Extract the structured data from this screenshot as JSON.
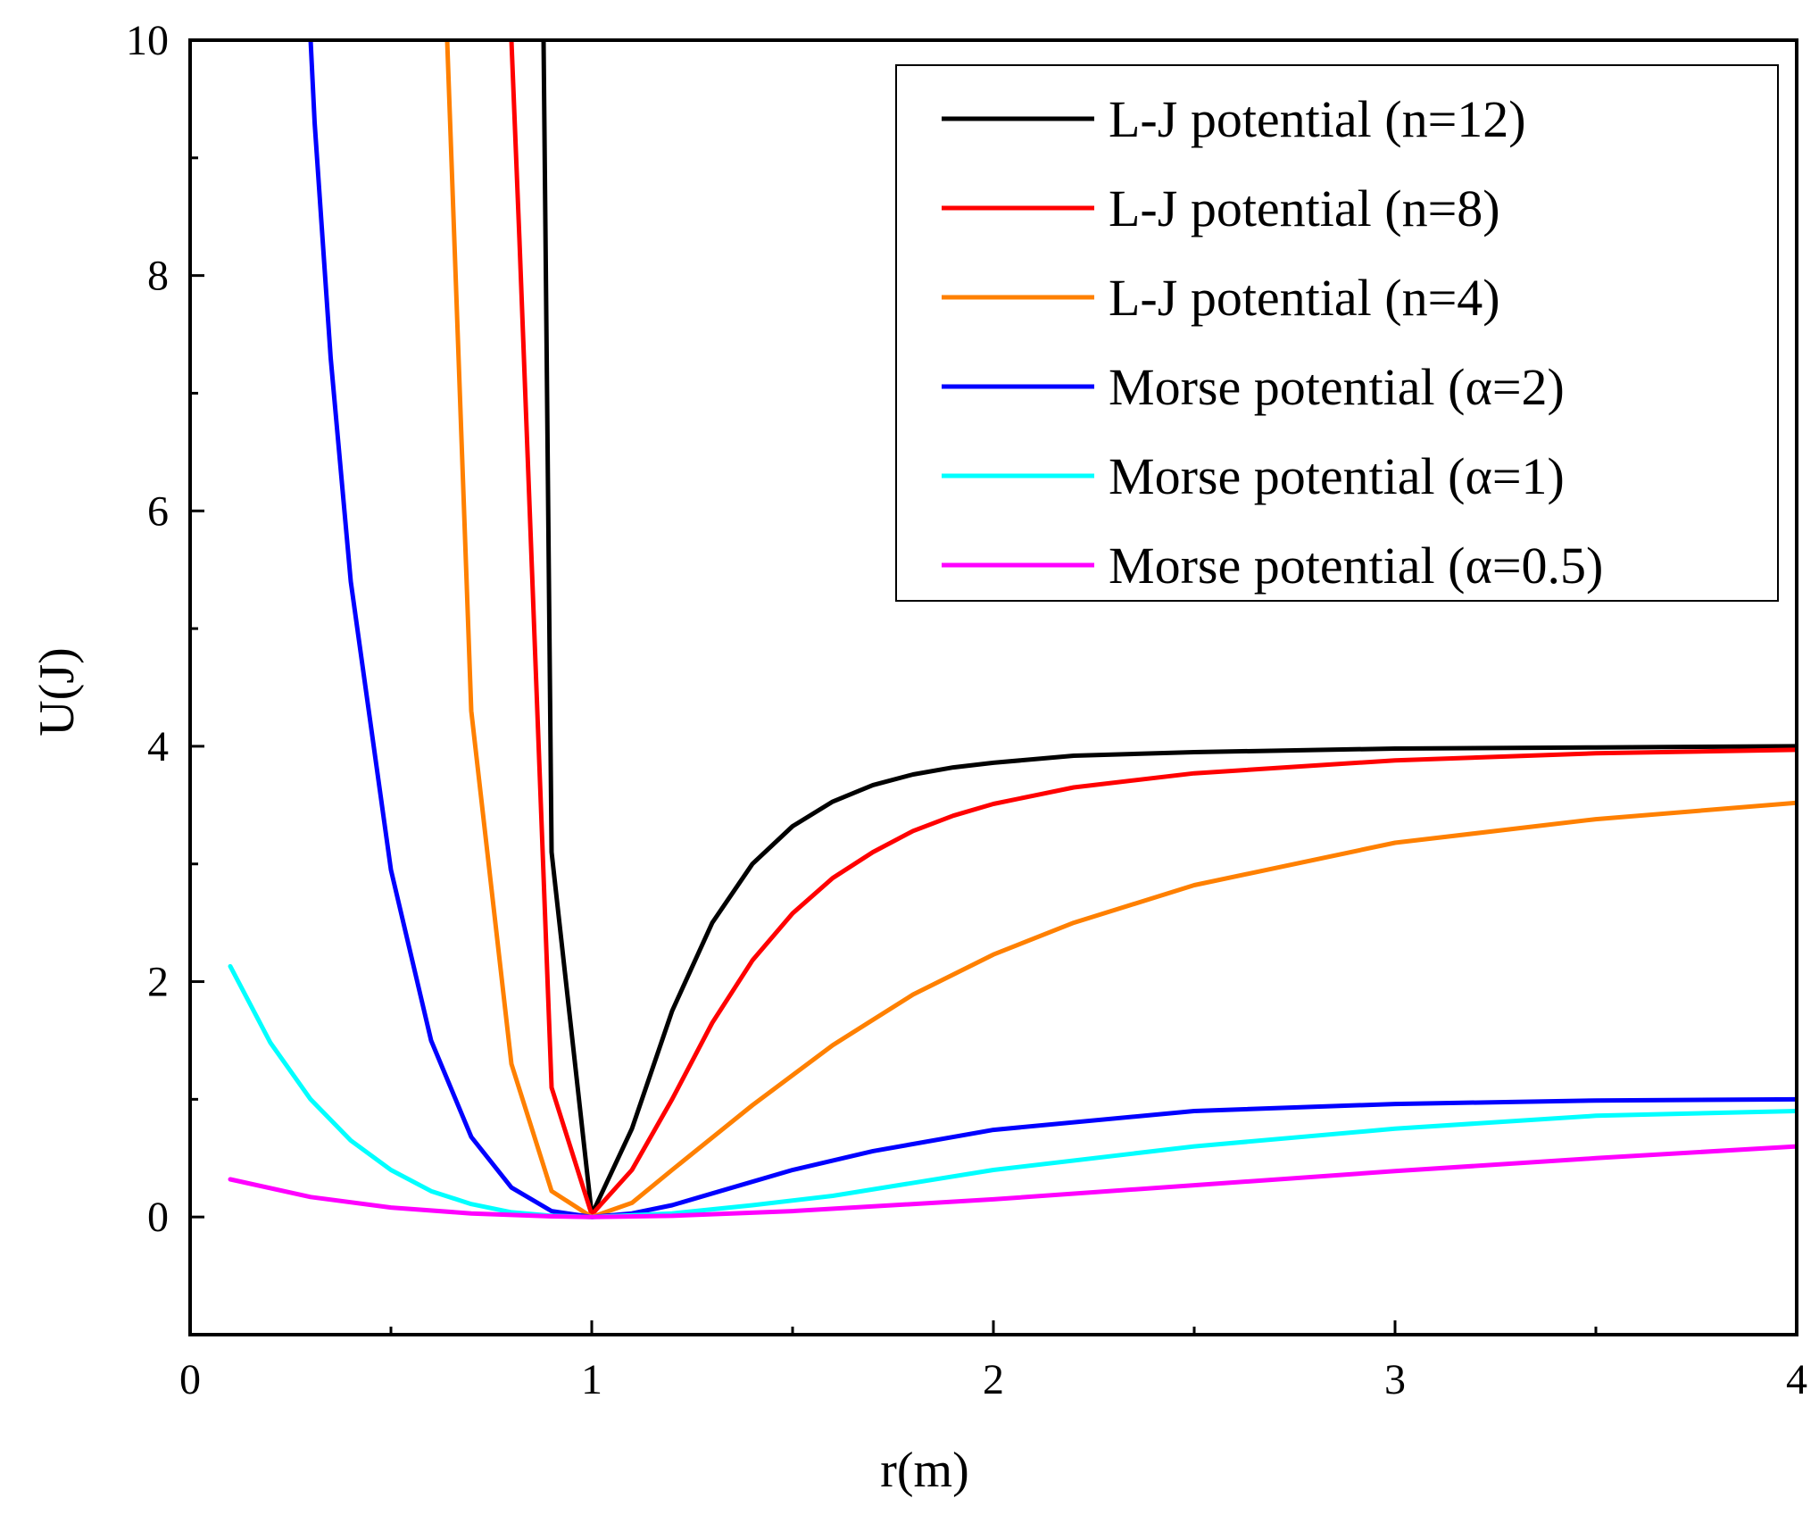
{
  "chart_data": {
    "type": "line",
    "title": "",
    "xlabel": "r(m)",
    "ylabel": "U(J)",
    "xlim": [
      0,
      4
    ],
    "ylim": [
      -1,
      10
    ],
    "xticks": [
      0,
      1,
      2,
      3,
      4
    ],
    "xtick_labels": [
      "0",
      "1",
      "2",
      "3",
      "4"
    ],
    "xminor": [
      0.5,
      1.5,
      2.5,
      3.5
    ],
    "yticks": [
      0,
      2,
      4,
      6,
      8,
      10
    ],
    "ytick_labels": [
      "0",
      "2",
      "4",
      "6",
      "8",
      "10"
    ],
    "yminor": [
      1,
      3,
      5,
      7,
      9
    ],
    "grid": false,
    "legend_position": "top-right",
    "series": [
      {
        "name": "L-J potential (n=12)",
        "color": "#000000",
        "x": [
          0.88,
          0.9,
          1.0,
          1.1,
          1.2,
          1.3,
          1.4,
          1.5,
          1.6,
          1.7,
          1.8,
          1.9,
          2.0,
          2.2,
          2.5,
          3.0,
          3.5,
          4.0
        ],
        "y": [
          10,
          3.1,
          0.02,
          0.75,
          1.75,
          2.5,
          3.0,
          3.32,
          3.53,
          3.67,
          3.76,
          3.82,
          3.86,
          3.92,
          3.95,
          3.98,
          3.99,
          4.0
        ]
      },
      {
        "name": "L-J potential (n=8)",
        "color": "#ff0000",
        "x": [
          0.8,
          0.82,
          0.9,
          1.0,
          1.1,
          1.2,
          1.3,
          1.4,
          1.5,
          1.6,
          1.7,
          1.8,
          1.9,
          2.0,
          2.2,
          2.5,
          3.0,
          3.5,
          4.0
        ],
        "y": [
          10,
          8.3,
          1.1,
          0.02,
          0.4,
          1.0,
          1.65,
          2.18,
          2.58,
          2.88,
          3.1,
          3.28,
          3.41,
          3.51,
          3.65,
          3.77,
          3.88,
          3.94,
          3.97
        ]
      },
      {
        "name": "L-J potential (n=4)",
        "color": "#ff8000",
        "x": [
          0.64,
          0.7,
          0.8,
          0.9,
          1.0,
          1.1,
          1.2,
          1.4,
          1.6,
          1.8,
          2.0,
          2.2,
          2.5,
          3.0,
          3.5,
          4.0
        ],
        "y": [
          10,
          4.3,
          1.3,
          0.22,
          0.0,
          0.12,
          0.4,
          0.95,
          1.46,
          1.89,
          2.23,
          2.5,
          2.82,
          3.18,
          3.38,
          3.52
        ]
      },
      {
        "name": "Morse potential (α=2)",
        "color": "#0000ff",
        "x": [
          0.3,
          0.31,
          0.35,
          0.4,
          0.5,
          0.6,
          0.7,
          0.8,
          0.9,
          1.0,
          1.1,
          1.2,
          1.3,
          1.5,
          1.7,
          2.0,
          2.5,
          3.0,
          3.5,
          4.0
        ],
        "y": [
          10,
          9.3,
          7.3,
          5.4,
          2.95,
          1.5,
          0.68,
          0.25,
          0.05,
          0.0,
          0.03,
          0.1,
          0.2,
          0.4,
          0.56,
          0.74,
          0.9,
          0.96,
          0.99,
          1.0
        ]
      },
      {
        "name": "Morse potential (α=1)",
        "color": "#00ffff",
        "x": [
          0.1,
          0.2,
          0.3,
          0.4,
          0.5,
          0.6,
          0.7,
          0.8,
          0.9,
          1.0,
          1.2,
          1.4,
          1.6,
          2.0,
          2.5,
          3.0,
          3.5,
          4.0
        ],
        "y": [
          2.13,
          1.48,
          1.0,
          0.65,
          0.4,
          0.22,
          0.11,
          0.04,
          0.01,
          0.0,
          0.03,
          0.1,
          0.18,
          0.4,
          0.6,
          0.75,
          0.86,
          0.9
        ]
      },
      {
        "name": "Morse potential (α=0.5)",
        "color": "#ff00ff",
        "x": [
          0.1,
          0.3,
          0.5,
          0.7,
          0.9,
          1.0,
          1.2,
          1.5,
          2.0,
          2.5,
          3.0,
          3.5,
          4.0
        ],
        "y": [
          0.32,
          0.17,
          0.08,
          0.03,
          0.005,
          0.0,
          0.01,
          0.05,
          0.15,
          0.27,
          0.39,
          0.5,
          0.6
        ]
      }
    ]
  }
}
